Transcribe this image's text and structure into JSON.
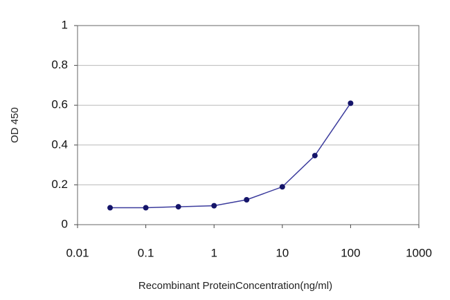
{
  "chart_data": {
    "type": "line",
    "x_label": "Recombinant ProteinConcentration(ng/ml)",
    "y_label": "OD 450",
    "x": [
      0.03,
      0.1,
      0.3,
      1,
      3,
      10,
      30,
      100
    ],
    "values": [
      0.085,
      0.085,
      0.09,
      0.095,
      0.125,
      0.19,
      0.347,
      0.61
    ],
    "color": "#3a3a9c",
    "marker_color": "#15156a",
    "xlog": true,
    "xlim": [
      0.01,
      1000
    ],
    "xticks": [
      0.01,
      0.1,
      1,
      10,
      100,
      1000
    ],
    "ylim": [
      0,
      1
    ],
    "yticks": [
      0,
      0.2,
      0.4,
      0.6,
      0.8,
      1
    ],
    "grid": true
  }
}
